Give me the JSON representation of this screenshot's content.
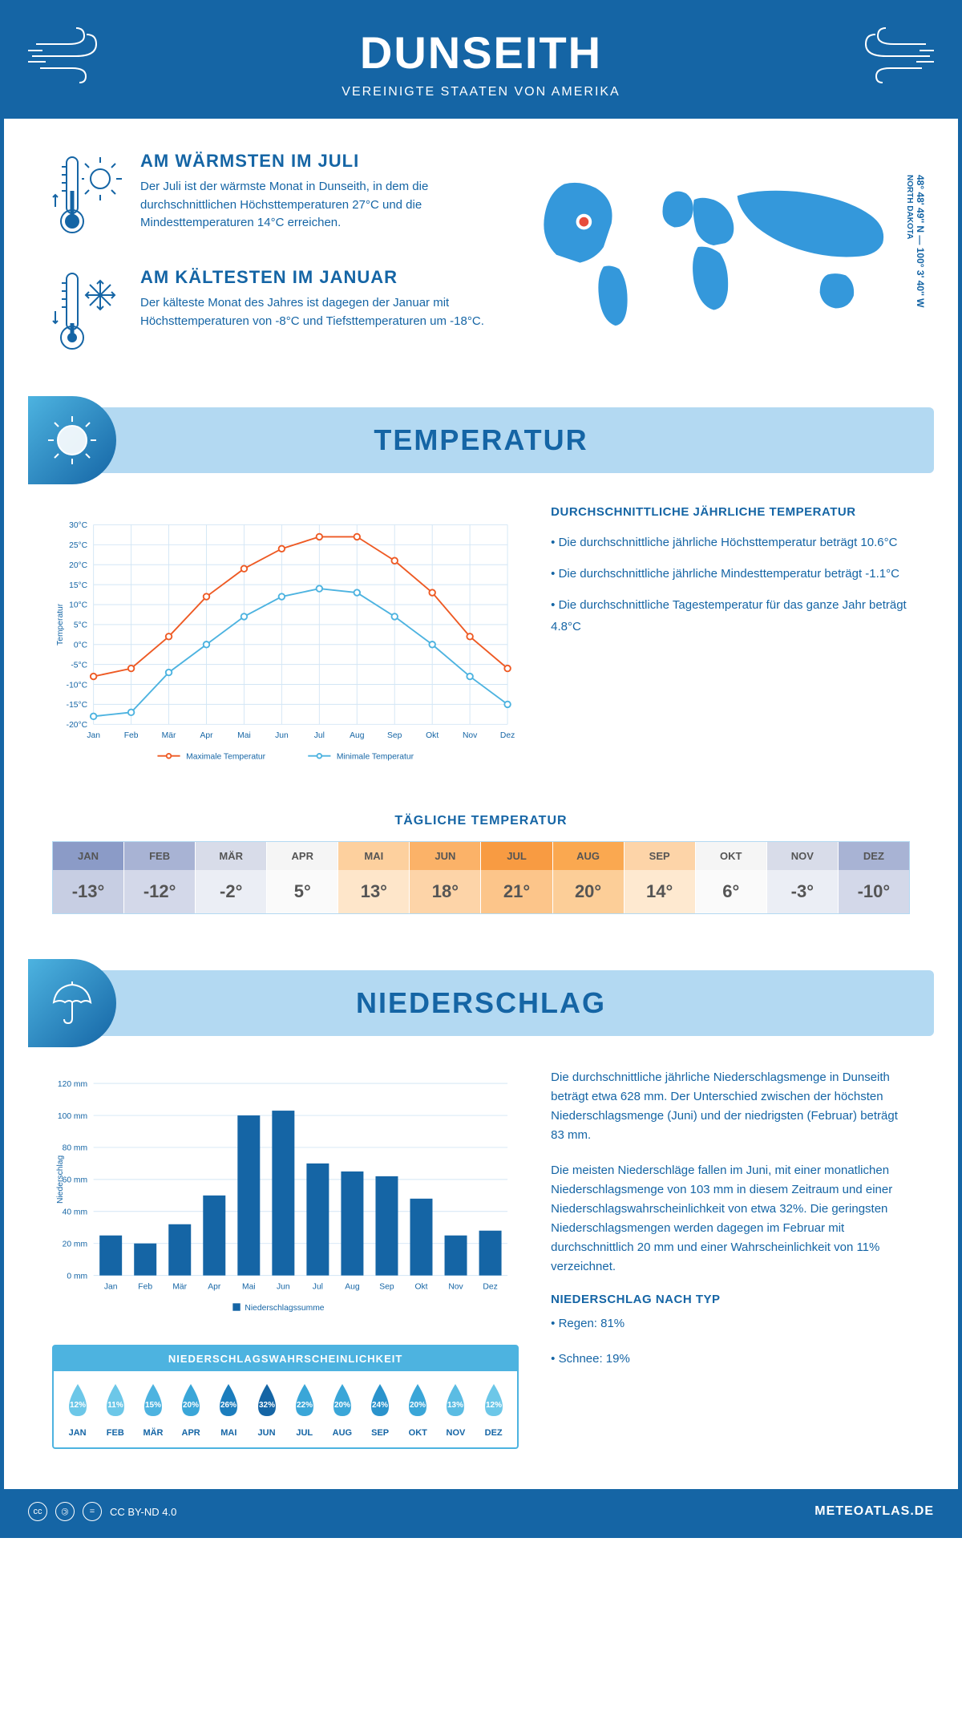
{
  "header": {
    "title": "DUNSEITH",
    "subtitle": "VEREINIGTE STAATEN VON AMERIKA"
  },
  "intro": {
    "warmest": {
      "title": "AM WÄRMSTEN IM JULI",
      "text": "Der Juli ist der wärmste Monat in Dunseith, in dem die durchschnittlichen Höchsttemperaturen 27°C und die Mindesttemperaturen 14°C erreichen."
    },
    "coldest": {
      "title": "AM KÄLTESTEN IM JANUAR",
      "text": "Der kälteste Monat des Jahres ist dagegen der Januar mit Höchsttemperaturen von -8°C und Tiefsttemperaturen um -18°C."
    },
    "coords": "48° 48' 49'' N — 100° 3' 40'' W",
    "region": "NORTH DAKOTA"
  },
  "temperature": {
    "section_title": "TEMPERATUR",
    "chart": {
      "type": "line",
      "months": [
        "Jan",
        "Feb",
        "Mär",
        "Apr",
        "Mai",
        "Jun",
        "Jul",
        "Aug",
        "Sep",
        "Okt",
        "Nov",
        "Dez"
      ],
      "max_temp": [
        -8,
        -6,
        2,
        12,
        19,
        24,
        27,
        27,
        21,
        13,
        2,
        -6
      ],
      "min_temp": [
        -18,
        -17,
        -7,
        0,
        7,
        12,
        14,
        13,
        7,
        0,
        -8,
        -15
      ],
      "max_color": "#ee5a24",
      "min_color": "#4db3e0",
      "ylabel": "Temperatur",
      "ylim": [
        -20,
        30
      ],
      "ytick_step": 5,
      "grid_color": "#d3e6f5",
      "legend_max": "Maximale Temperatur",
      "legend_min": "Minimale Temperatur",
      "background_color": "#ffffff",
      "line_width": 2,
      "marker_size": 4
    },
    "info": {
      "title": "DURCHSCHNITTLICHE JÄHRLICHE TEMPERATUR",
      "bullets": [
        "• Die durchschnittliche jährliche Höchsttemperatur beträgt 10.6°C",
        "• Die durchschnittliche jährliche Mindesttemperatur beträgt -1.1°C",
        "• Die durchschnittliche Tagestemperatur für das ganze Jahr beträgt 4.8°C"
      ]
    },
    "daily": {
      "title": "TÄGLICHE TEMPERATUR",
      "months": [
        "JAN",
        "FEB",
        "MÄR",
        "APR",
        "MAI",
        "JUN",
        "JUL",
        "AUG",
        "SEP",
        "OKT",
        "NOV",
        "DEZ"
      ],
      "values": [
        "-13°",
        "-12°",
        "-2°",
        "5°",
        "13°",
        "18°",
        "21°",
        "20°",
        "14°",
        "6°",
        "-3°",
        "-10°"
      ],
      "month_bg": [
        "#8b9bc7",
        "#a8b3d4",
        "#d8dce9",
        "#f5f5f5",
        "#fdd09e",
        "#fbb268",
        "#f89b42",
        "#faa850",
        "#fdd4a8",
        "#f5f5f5",
        "#d8dce9",
        "#a8b3d4"
      ],
      "value_bg": [
        "#c7cee3",
        "#d3d8e9",
        "#ebeef5",
        "#fafafa",
        "#fee6ca",
        "#fdd4a8",
        "#fcc58a",
        "#fcce98",
        "#fee9d0",
        "#fafafa",
        "#ebeef5",
        "#d3d8e9"
      ],
      "text_color": "#555"
    }
  },
  "precipitation": {
    "section_title": "NIEDERSCHLAG",
    "chart": {
      "type": "bar",
      "months": [
        "Jan",
        "Feb",
        "Mär",
        "Apr",
        "Mai",
        "Jun",
        "Jul",
        "Aug",
        "Sep",
        "Okt",
        "Nov",
        "Dez"
      ],
      "values": [
        25,
        20,
        32,
        50,
        100,
        103,
        70,
        65,
        62,
        48,
        25,
        28
      ],
      "bar_color": "#1565a5",
      "ylabel": "Niederschlag",
      "ylim": [
        0,
        120
      ],
      "ytick_step": 20,
      "grid_color": "#d3e6f5",
      "legend": "Niederschlagssumme",
      "bar_width": 0.65
    },
    "text1": "Die durchschnittliche jährliche Niederschlagsmenge in Dunseith beträgt etwa 628 mm. Der Unterschied zwischen der höchsten Niederschlagsmenge (Juni) und der niedrigsten (Februar) beträgt 83 mm.",
    "text2": "Die meisten Niederschläge fallen im Juni, mit einer monatlichen Niederschlagsmenge von 103 mm in diesem Zeitraum und einer Niederschlagswahrscheinlichkeit von etwa 32%. Die geringsten Niederschlagsmengen werden dagegen im Februar mit durchschnittlich 20 mm und einer Wahrscheinlichkeit von 11% verzeichnet.",
    "bytype_title": "NIEDERSCHLAG NACH TYP",
    "bytype": [
      "• Regen: 81%",
      "• Schnee: 19%"
    ],
    "probability": {
      "title": "NIEDERSCHLAGSWAHRSCHEINLICHKEIT",
      "months": [
        "JAN",
        "FEB",
        "MÄR",
        "APR",
        "MAI",
        "JUN",
        "JUL",
        "AUG",
        "SEP",
        "OKT",
        "NOV",
        "DEZ"
      ],
      "values": [
        "12%",
        "11%",
        "15%",
        "20%",
        "26%",
        "32%",
        "22%",
        "20%",
        "24%",
        "20%",
        "13%",
        "12%"
      ],
      "drop_colors": [
        "#6cc7e8",
        "#6cc7e8",
        "#4db3e0",
        "#3aa6d8",
        "#1b7dbd",
        "#1565a5",
        "#3aa6d8",
        "#3aa6d8",
        "#2a93cc",
        "#3aa6d8",
        "#5bbce3",
        "#6cc7e8"
      ]
    }
  },
  "footer": {
    "license": "CC BY-ND 4.0",
    "site": "METEOATLAS.DE"
  },
  "colors": {
    "primary": "#1565a5",
    "light_blue": "#b3d9f2",
    "accent": "#4db3e0"
  }
}
